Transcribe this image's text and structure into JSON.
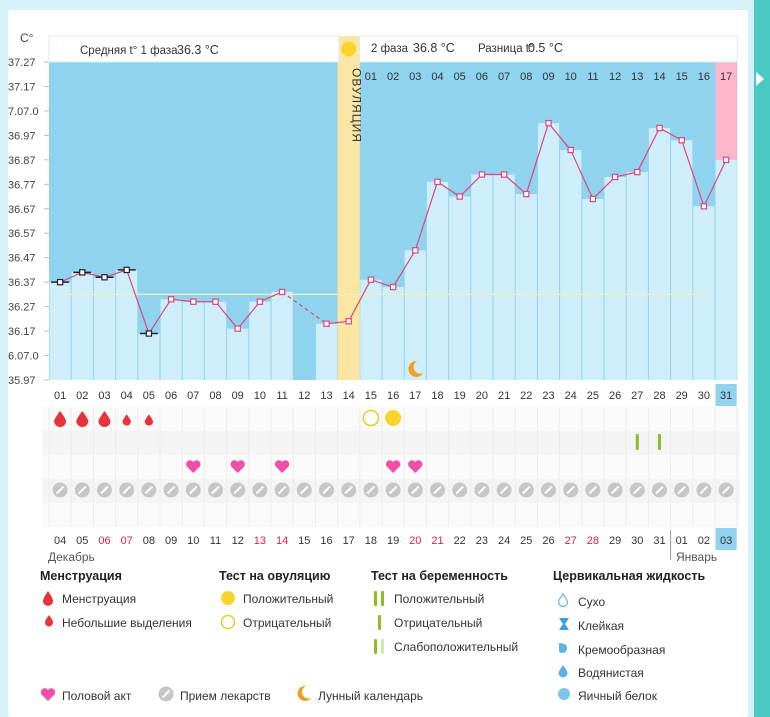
{
  "unit": "C°",
  "header": {
    "phase1_label": "Средняя t° 1 фаза",
    "phase1_value": "36.3 °C",
    "phase2_label": "2 фаза",
    "phase2_value": "36.8 °C",
    "diff_label": "Разница t°",
    "diff_value": "0.5 °C"
  },
  "ovulation_label": "ОВУЛЯЦИЯ",
  "y_ticks": [
    "37.27",
    "37.17",
    "7.07.0",
    "36.97",
    "36.87",
    "36.77",
    "36.67",
    "36.57",
    "36.47",
    "36.37",
    "36.27",
    "36.17",
    "6.07.0",
    "35.97"
  ],
  "cycle_days": [
    "01",
    "02",
    "03",
    "04",
    "05",
    "06",
    "07",
    "08",
    "09",
    "10",
    "11",
    "12",
    "13",
    "14",
    "15",
    "16",
    "17",
    "18",
    "19",
    "20",
    "21",
    "22",
    "23",
    "24",
    "25",
    "26",
    "27",
    "28",
    "29",
    "30",
    "31"
  ],
  "phase2_days": [
    "01",
    "02",
    "03",
    "04",
    "05",
    "06",
    "07",
    "08",
    "09",
    "10",
    "11",
    "12",
    "13",
    "14",
    "15",
    "16",
    "17"
  ],
  "dates": [
    "04",
    "05",
    "06",
    "07",
    "08",
    "09",
    "10",
    "11",
    "12",
    "13",
    "14",
    "15",
    "16",
    "17",
    "18",
    "19",
    "20",
    "21",
    "22",
    "23",
    "24",
    "25",
    "26",
    "27",
    "28",
    "29",
    "30",
    "31",
    "01",
    "02",
    "03"
  ],
  "red_dates": [
    2,
    3,
    9,
    10,
    16,
    17,
    23,
    24
  ],
  "months": {
    "dec": "Декабрь",
    "jan": "Январь"
  },
  "chart_data": {
    "type": "line",
    "xlabel": "",
    "ylabel": "C°",
    "ylim": [
      35.97,
      37.27
    ],
    "x": [
      1,
      2,
      3,
      4,
      5,
      6,
      7,
      8,
      9,
      10,
      11,
      12,
      13,
      14,
      15,
      16,
      17,
      18,
      19,
      20,
      21,
      22,
      23,
      24,
      25,
      26,
      27,
      28,
      29,
      30,
      31
    ],
    "series": [
      {
        "name": "temperature",
        "values": [
          36.37,
          36.41,
          36.39,
          36.42,
          36.16,
          36.3,
          36.29,
          36.29,
          36.18,
          36.29,
          36.33,
          null,
          36.2,
          36.21,
          36.38,
          36.35,
          36.5,
          36.78,
          36.72,
          36.81,
          36.81,
          36.73,
          37.02,
          36.91,
          36.71,
          36.8,
          36.82,
          37.0,
          36.95,
          36.68,
          36.87
        ]
      }
    ],
    "phase1_mean_line": 36.32,
    "ovulation_day": 14,
    "current_day": 31
  },
  "markers": {
    "menstruation": [
      1,
      2,
      3
    ],
    "spotting": [
      4,
      5
    ],
    "ovulation_negative": [
      15
    ],
    "ovulation_positive": [
      16
    ],
    "pregnancy_weak": [
      27,
      28
    ],
    "intercourse": [
      7,
      9,
      11,
      16,
      17
    ],
    "lunar": [
      17
    ]
  },
  "legend": {
    "menstruation_title": "Менструация",
    "menstruation": "Менструация",
    "spotting": "Небольшие выделения",
    "ovulation_title": "Тест на овуляцию",
    "positive": "Положительный",
    "negative": "Отрицательный",
    "pregnancy_title": "Тест на беременность",
    "preg_positive": "Положительный",
    "preg_negative": "Отрицательный",
    "preg_weak": "Слабоположительный",
    "fluid_title": "Цервикальная жидкость",
    "dry": "Сухо",
    "sticky": "Клейкая",
    "creamy": "Кремообразная",
    "watery": "Водянистая",
    "eggwhite": "Яичный белок",
    "intercourse": "Половой акт",
    "medication": "Прием лекарств",
    "lunar": "Лунный календарь"
  },
  "colors": {
    "sky": "#8fd3ef",
    "bar": "#cdeefa",
    "ovulation": "#fbe7a3",
    "current": "#fbb6cc",
    "line": "#e0457b",
    "blood": "#e8333c",
    "heart": "#f04fa8",
    "sun": "#f9d42b",
    "moon": "#f0a020",
    "green": "#8cbf26",
    "teal": "#4bc9c3"
  }
}
